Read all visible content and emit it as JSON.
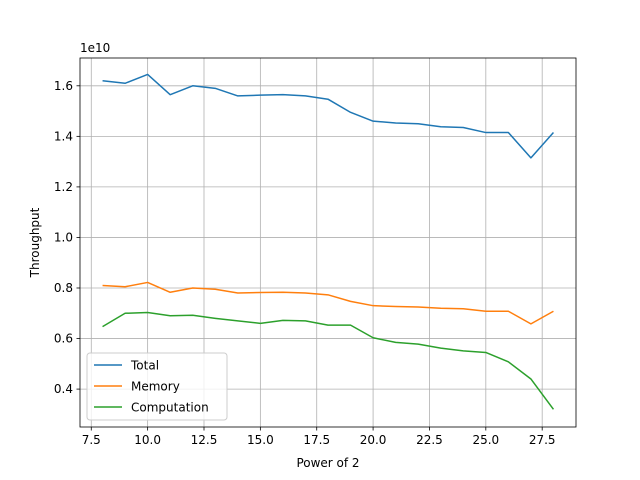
{
  "chart_data": {
    "type": "line",
    "title": "",
    "xlabel": "Power of 2",
    "ylabel": "Throughput",
    "y_multiplier_label": "1e10",
    "xlim": [
      7.0,
      29.0
    ],
    "ylim": [
      0.25,
      1.71
    ],
    "xticks": [
      7.5,
      10.0,
      12.5,
      15.0,
      17.5,
      20.0,
      22.5,
      25.0,
      27.5
    ],
    "xtick_labels": [
      "7.5",
      "10.0",
      "12.5",
      "15.0",
      "17.5",
      "20.0",
      "22.5",
      "25.0",
      "27.5"
    ],
    "yticks": [
      0.4,
      0.6,
      0.8,
      1.0,
      1.2,
      1.4,
      1.6
    ],
    "ytick_labels": [
      "0.4",
      "0.6",
      "0.8",
      "1.0",
      "1.2",
      "1.4",
      "1.6"
    ],
    "grid": true,
    "legend_position": "lower-left",
    "x": [
      8,
      9,
      10,
      11,
      12,
      13,
      14,
      15,
      16,
      17,
      18,
      19,
      20,
      21,
      22,
      23,
      24,
      25,
      26,
      27,
      28
    ],
    "series": [
      {
        "name": "Total",
        "color": "#1f77b4",
        "values": [
          1.62,
          1.61,
          1.645,
          1.565,
          1.6,
          1.59,
          1.56,
          1.563,
          1.565,
          1.56,
          1.547,
          1.495,
          1.46,
          1.453,
          1.45,
          1.438,
          1.435,
          1.415,
          1.415,
          1.315,
          1.415
        ]
      },
      {
        "name": "Memory",
        "color": "#ff7f0e",
        "values": [
          0.81,
          0.805,
          0.822,
          0.783,
          0.8,
          0.795,
          0.78,
          0.782,
          0.783,
          0.78,
          0.773,
          0.747,
          0.73,
          0.727,
          0.725,
          0.72,
          0.718,
          0.708,
          0.708,
          0.658,
          0.708
        ]
      },
      {
        "name": "Computation",
        "color": "#2ca02c",
        "values": [
          0.647,
          0.7,
          0.703,
          0.69,
          0.692,
          0.68,
          0.67,
          0.66,
          0.672,
          0.67,
          0.653,
          0.653,
          0.603,
          0.585,
          0.578,
          0.562,
          0.551,
          0.545,
          0.508,
          0.44,
          0.32
        ]
      }
    ]
  }
}
